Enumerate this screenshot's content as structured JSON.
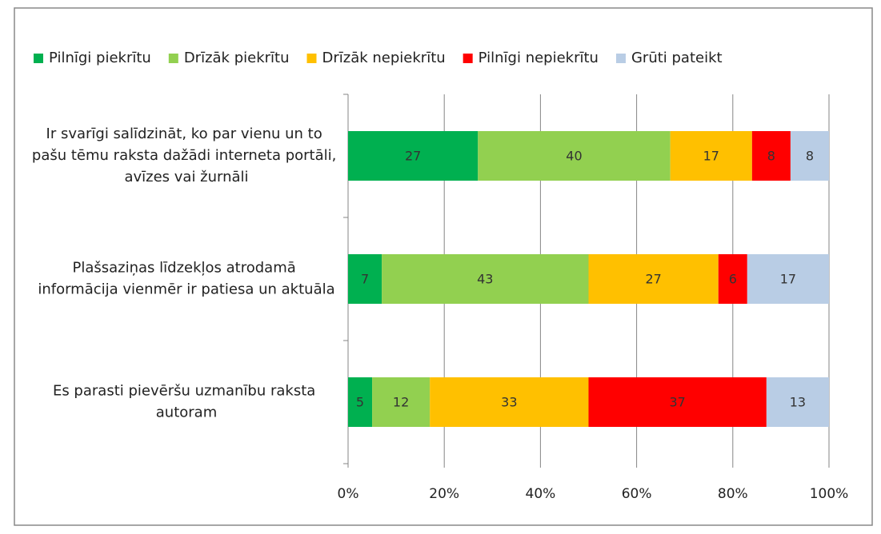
{
  "chart_data": {
    "type": "bar",
    "orientation": "horizontal",
    "stacked": true,
    "categories": [
      "Ir svarīgi salīdzināt, ko par vienu un to pašu tēmu raksta dažādi interneta portāli, avīzes vai žurnāli",
      "Plašsaziņas līdzekļos atrodamā informācija vienmēr ir patiesa un aktuāla",
      "Es parasti pievēršu uzmanību raksta autoram"
    ],
    "series": [
      {
        "name": "Pilnīgi piekrītu",
        "color": "#00b050",
        "values": [
          27,
          7,
          5
        ]
      },
      {
        "name": "Drīzāk piekrītu",
        "color": "#92d050",
        "values": [
          40,
          43,
          12
        ]
      },
      {
        "name": "Drīzāk nepiekrītu",
        "color": "#ffc000",
        "values": [
          17,
          27,
          33
        ]
      },
      {
        "name": "Pilnīgi nepiekrītu",
        "color": "#ff0000",
        "values": [
          8,
          6,
          37
        ]
      },
      {
        "name": "Grūti pateikt",
        "color": "#b9cde5",
        "values": [
          8,
          17,
          13
        ]
      }
    ],
    "xlim": [
      0,
      100
    ],
    "xticks": [
      {
        "value": 0,
        "label": "0%"
      },
      {
        "value": 20,
        "label": "20%"
      },
      {
        "value": 40,
        "label": "40%"
      },
      {
        "value": 60,
        "label": "60%"
      },
      {
        "value": 80,
        "label": "80%"
      },
      {
        "value": 100,
        "label": "100%"
      }
    ],
    "grid": true,
    "legend": "top"
  }
}
